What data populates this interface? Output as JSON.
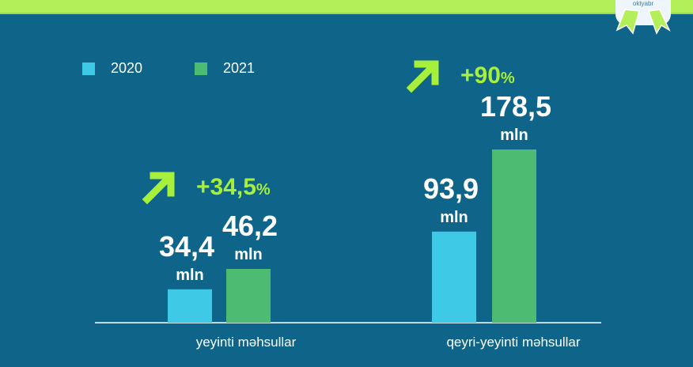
{
  "badge": {
    "text": "oktyabr"
  },
  "colors": {
    "y2020": "#3ec9e6",
    "y2021": "#4dbb72",
    "accent": "#a6f03c",
    "background": "#0f6489"
  },
  "chart_data": {
    "type": "bar",
    "categories": [
      "yeyinti məhsullar",
      "qeyri-yeyinti məhsullar"
    ],
    "series": [
      {
        "name": "2020",
        "values": [
          34.4,
          93.9
        ],
        "labels": [
          "34,4",
          "93,9"
        ]
      },
      {
        "name": "2021",
        "values": [
          46.2,
          178.5
        ],
        "labels": [
          "46,2",
          "178,5"
        ]
      }
    ],
    "unit": "mln",
    "growth": [
      "+34,5%",
      "+90%"
    ],
    "legend": "top-left",
    "grid": false
  }
}
